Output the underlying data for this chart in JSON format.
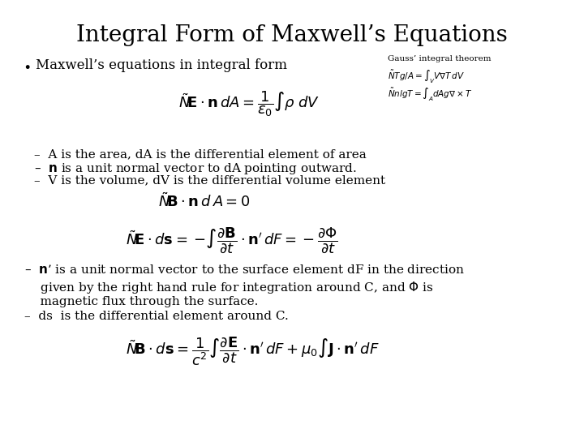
{
  "title": "Integral Form of Maxwell’s Equations",
  "background_color": "#ffffff",
  "text_color": "#000000",
  "title_fontsize": 20,
  "body_fontsize": 11,
  "math_fontsize": 12,
  "gauss_label": "Gauss’ integral theorem",
  "bullet": "Maxwell’s equations in integral form",
  "items1": [
    "–  A is the area, dA is the differential element of area",
    "–  $\\mathbf{n}$ is a unit normal vector to dA pointing outward.",
    "–  V is the volume, dV is the differential volume element"
  ],
  "items2_line1": "–  $\\mathbf{n}$’ is a unit normal vector to the surface element dF in the direction",
  "items2_line2": "    given by the right hand rule for integration around C, and $\\Phi$ is",
  "items2_line3": "    magnetic flux through the surface.",
  "items2_line4": "–  ds  is the differential element around C."
}
